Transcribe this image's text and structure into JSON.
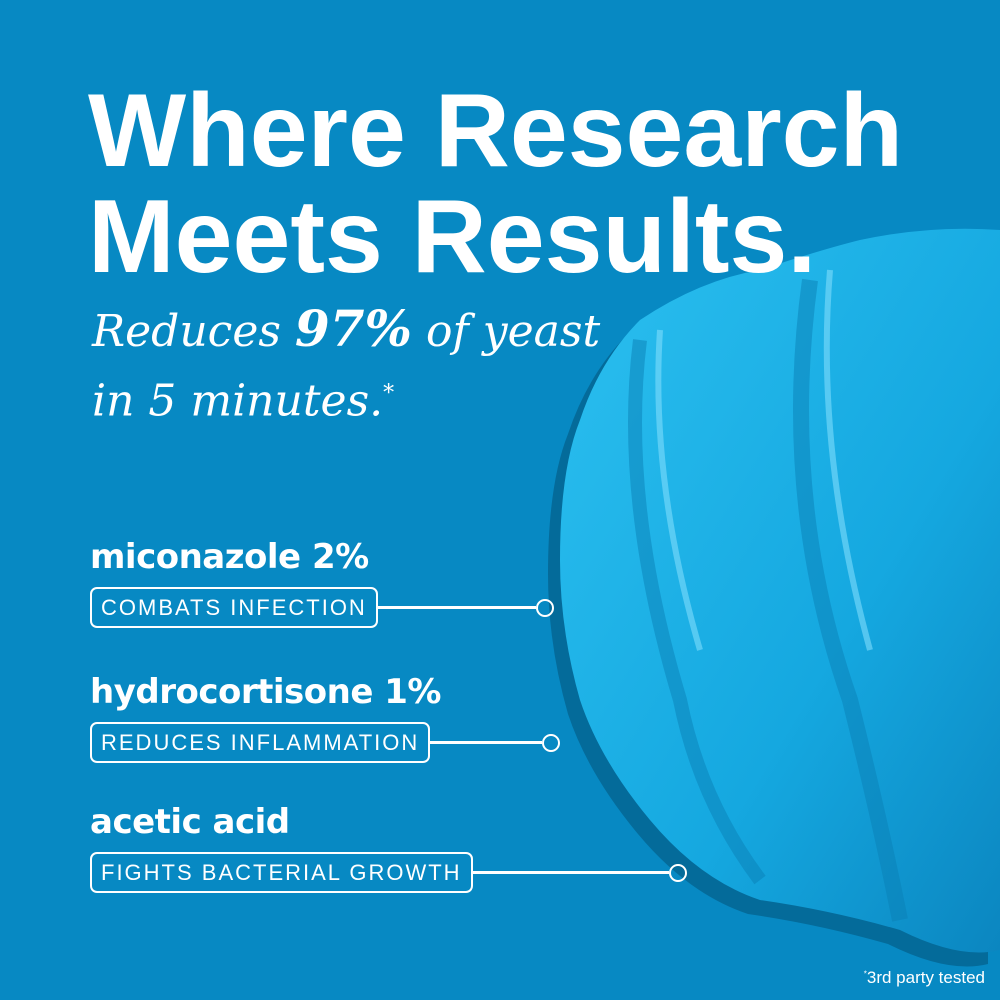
{
  "headline": {
    "line1": "Where Research",
    "line2": "Meets Results."
  },
  "subheadline": {
    "pre": "Reduces ",
    "highlight": "97%",
    "post": " of yeast",
    "line2": "in 5 minutes.",
    "marker": "*"
  },
  "ingredients": [
    {
      "name": "miconazole 2%",
      "benefit": "COMBATS INFECTION"
    },
    {
      "name": "hydrocortisone 1%",
      "benefit": "REDUCES INFLAMMATION"
    },
    {
      "name": "acetic acid",
      "benefit": "FIGHTS BACTERIAL GROWTH"
    }
  ],
  "footnote": {
    "marker": "*",
    "text": "3rd party tested"
  },
  "colors": {
    "background": "#0789c3",
    "gel": "#19b3e8",
    "text": "#ffffff"
  }
}
